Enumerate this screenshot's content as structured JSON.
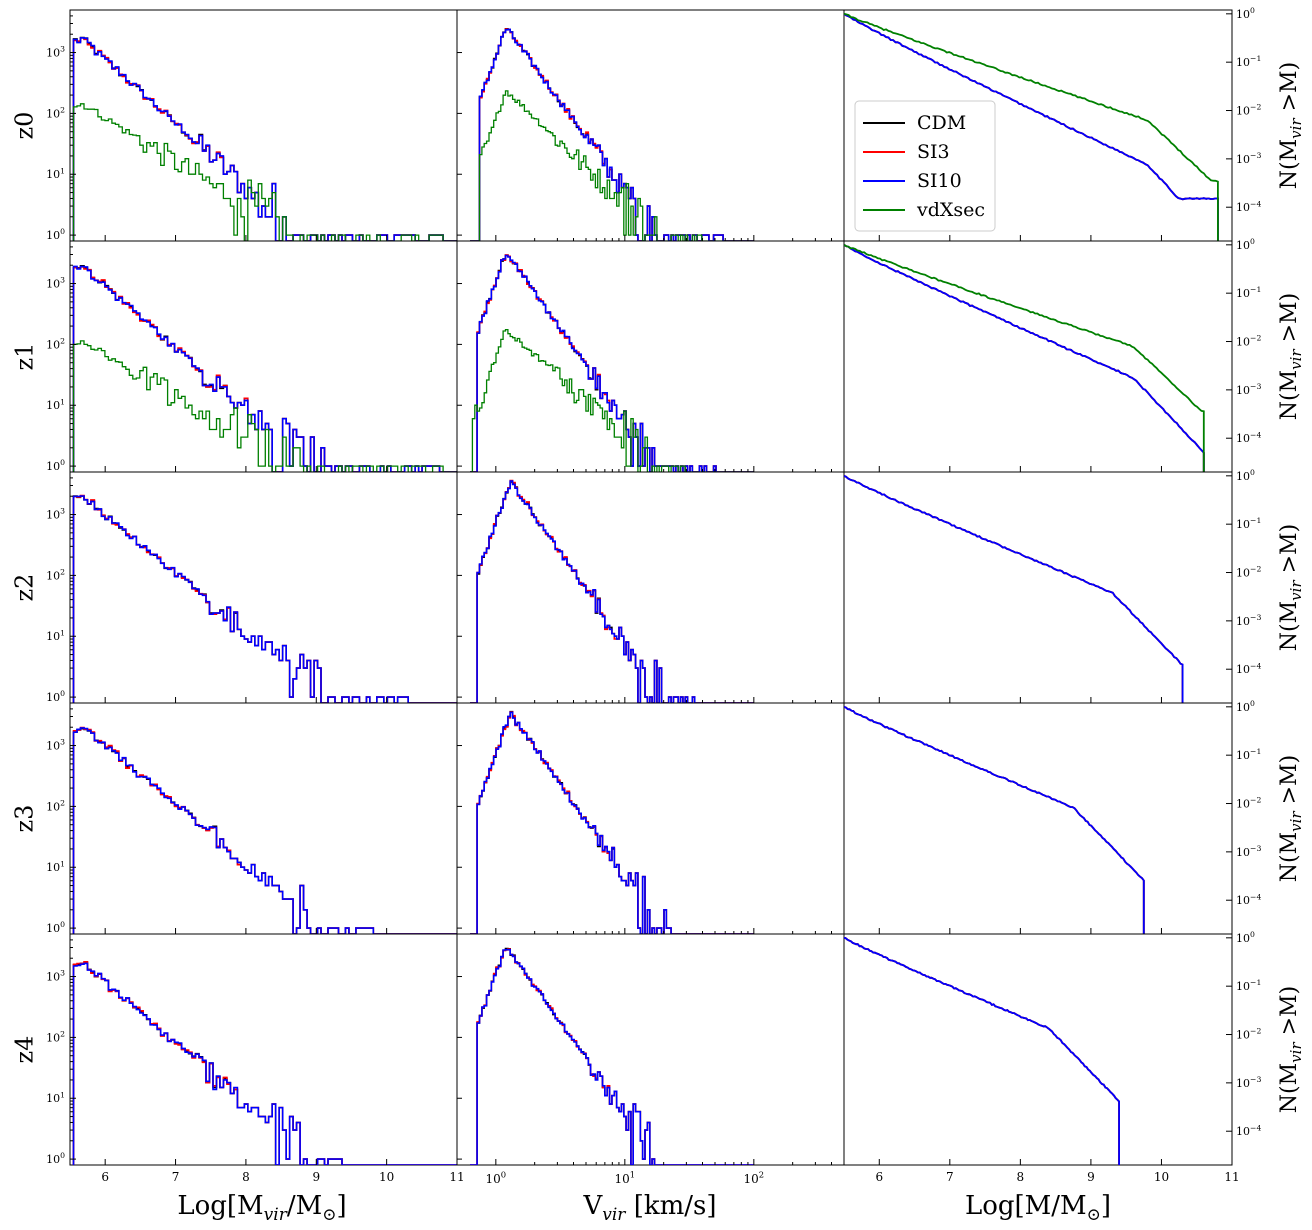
{
  "chart_data": {
    "type": "histogram-grid",
    "rows": [
      "z0",
      "z1",
      "z2",
      "z3",
      "z4"
    ],
    "series": [
      {
        "name": "CDM",
        "color": "#000000"
      },
      {
        "name": "SI3",
        "color": "#ff0000"
      },
      {
        "name": "SI10",
        "color": "#0000ff"
      },
      {
        "name": "vdXsec",
        "color": "#008000"
      }
    ],
    "legend": {
      "placement": "left, first row, right column",
      "entries": [
        "CDM",
        "SI3",
        "SI10",
        "vdXsec"
      ]
    },
    "columns": [
      {
        "quantity": "mass function",
        "xlabel": "Log[M$_{vir}$/M$_{\\odot}$]",
        "xlabel_main": "Log[M",
        "xlabel_sub": "vir",
        "xlabel_mid": "/M",
        "xlabel_sub2": "⊙",
        "xlabel_end": "]",
        "xscale": "linear",
        "xlim": [
          5.5,
          11
        ],
        "xticks": [
          6,
          7,
          8,
          9,
          10,
          11
        ],
        "yscale": "log",
        "ylim": [
          0.8,
          5000
        ],
        "yticks": [
          "10",
          "10",
          "10",
          "10"
        ],
        "ytick_exponents": [
          "0",
          "1",
          "2",
          "3"
        ],
        "ytick_values": [
          1,
          10,
          100,
          1000
        ]
      },
      {
        "quantity": "velocity function",
        "xlabel_main": "V",
        "xlabel_sub": "vir",
        "xlabel_end": " [km/s]",
        "xscale": "log",
        "xlim": [
          0.5,
          500
        ],
        "xticks": [
          "10",
          "10",
          "10"
        ],
        "xtick_exponents": [
          "0",
          "1",
          "2"
        ],
        "xtick_values": [
          1,
          10,
          100
        ],
        "yscale": "log",
        "ylim": [
          0.8,
          5000
        ]
      },
      {
        "quantity": "cumulative mass function",
        "xlabel_main": "Log[M/M",
        "xlabel_sub": "⊙",
        "xlabel_end": "]",
        "xscale": "linear",
        "xlim": [
          5.5,
          11
        ],
        "xticks": [
          6,
          7,
          8,
          9,
          10,
          11
        ],
        "yscale": "log",
        "ylim": [
          2e-05,
          1.2
        ],
        "ylabel_main": "N(M",
        "ylabel_sub": "vir",
        "ylabel_end": " >M)",
        "ytick_base": "10",
        "ytick_exponents": [
          "−4",
          "−3",
          "−2",
          "−1",
          "0"
        ],
        "ytick_values": [
          0.0001,
          0.001,
          0.01,
          0.1,
          1
        ]
      }
    ],
    "panels": [
      {
        "row": "z0",
        "mass": {
          "peak_x": 5.65,
          "peak_y": 1800,
          "slope": -1.05,
          "end_x": 10.9,
          "vdxsec": {
            "peak_y": 150,
            "slope": -0.72,
            "end_x": 10.8
          }
        },
        "vel": {
          "rise_x": 1.0,
          "peak_x": 1.2,
          "peak_y": 2600,
          "cutoff_x": 60,
          "vdxsec": {
            "rise_x": 1.0,
            "peak_x": 1.2,
            "peak_y": 240,
            "cutoff_x": 40
          }
        },
        "cum": {
          "end_x": 10.8,
          "floor": 0.00015,
          "vdxsec": {
            "end_x": 10.8,
            "floor": 0.00035
          }
        }
      },
      {
        "row": "z1",
        "mass": {
          "peak_x": 5.65,
          "peak_y": 2100,
          "slope": -1.02,
          "end_x": 10.8,
          "vdxsec": {
            "peak_y": 120,
            "slope": -0.7,
            "end_x": 10.8
          }
        },
        "vel": {
          "rise_x": 0.95,
          "peak_x": 1.2,
          "peak_y": 3300,
          "cutoff_x": 50,
          "vdxsec": {
            "rise_x": 0.85,
            "peak_x": 1.2,
            "peak_y": 180,
            "cutoff_x": 30
          }
        },
        "cum": {
          "end_x": 10.6,
          "floor": 3e-05,
          "vdxsec": {
            "end_x": 10.6,
            "floor": 0.00035
          }
        }
      },
      {
        "row": "z2",
        "mass": {
          "peak_x": 5.65,
          "peak_y": 2100,
          "slope": -0.95,
          "end_x": 10.3
        },
        "vel": {
          "rise_x": 0.95,
          "peak_x": 1.3,
          "peak_y": 3500,
          "cutoff_x": 35
        },
        "cum": {
          "end_x": 10.3,
          "floor": 3e-05
        }
      },
      {
        "row": "z3",
        "mass": {
          "peak_x": 5.65,
          "peak_y": 2100,
          "slope": -0.95,
          "end_x": 9.8
        },
        "vel": {
          "rise_x": 0.95,
          "peak_x": 1.3,
          "peak_y": 3400,
          "cutoff_x": 25
        },
        "cum": {
          "end_x": 9.75,
          "floor": 3e-05
        }
      },
      {
        "row": "z4",
        "mass": {
          "peak_x": 5.65,
          "peak_y": 1800,
          "slope": -1.0,
          "end_x": 9.4
        },
        "vel": {
          "rise_x": 0.95,
          "peak_x": 1.2,
          "peak_y": 3300,
          "cutoff_x": 17
        },
        "cum": {
          "end_x": 9.4,
          "floor": 3e-05
        }
      }
    ]
  }
}
